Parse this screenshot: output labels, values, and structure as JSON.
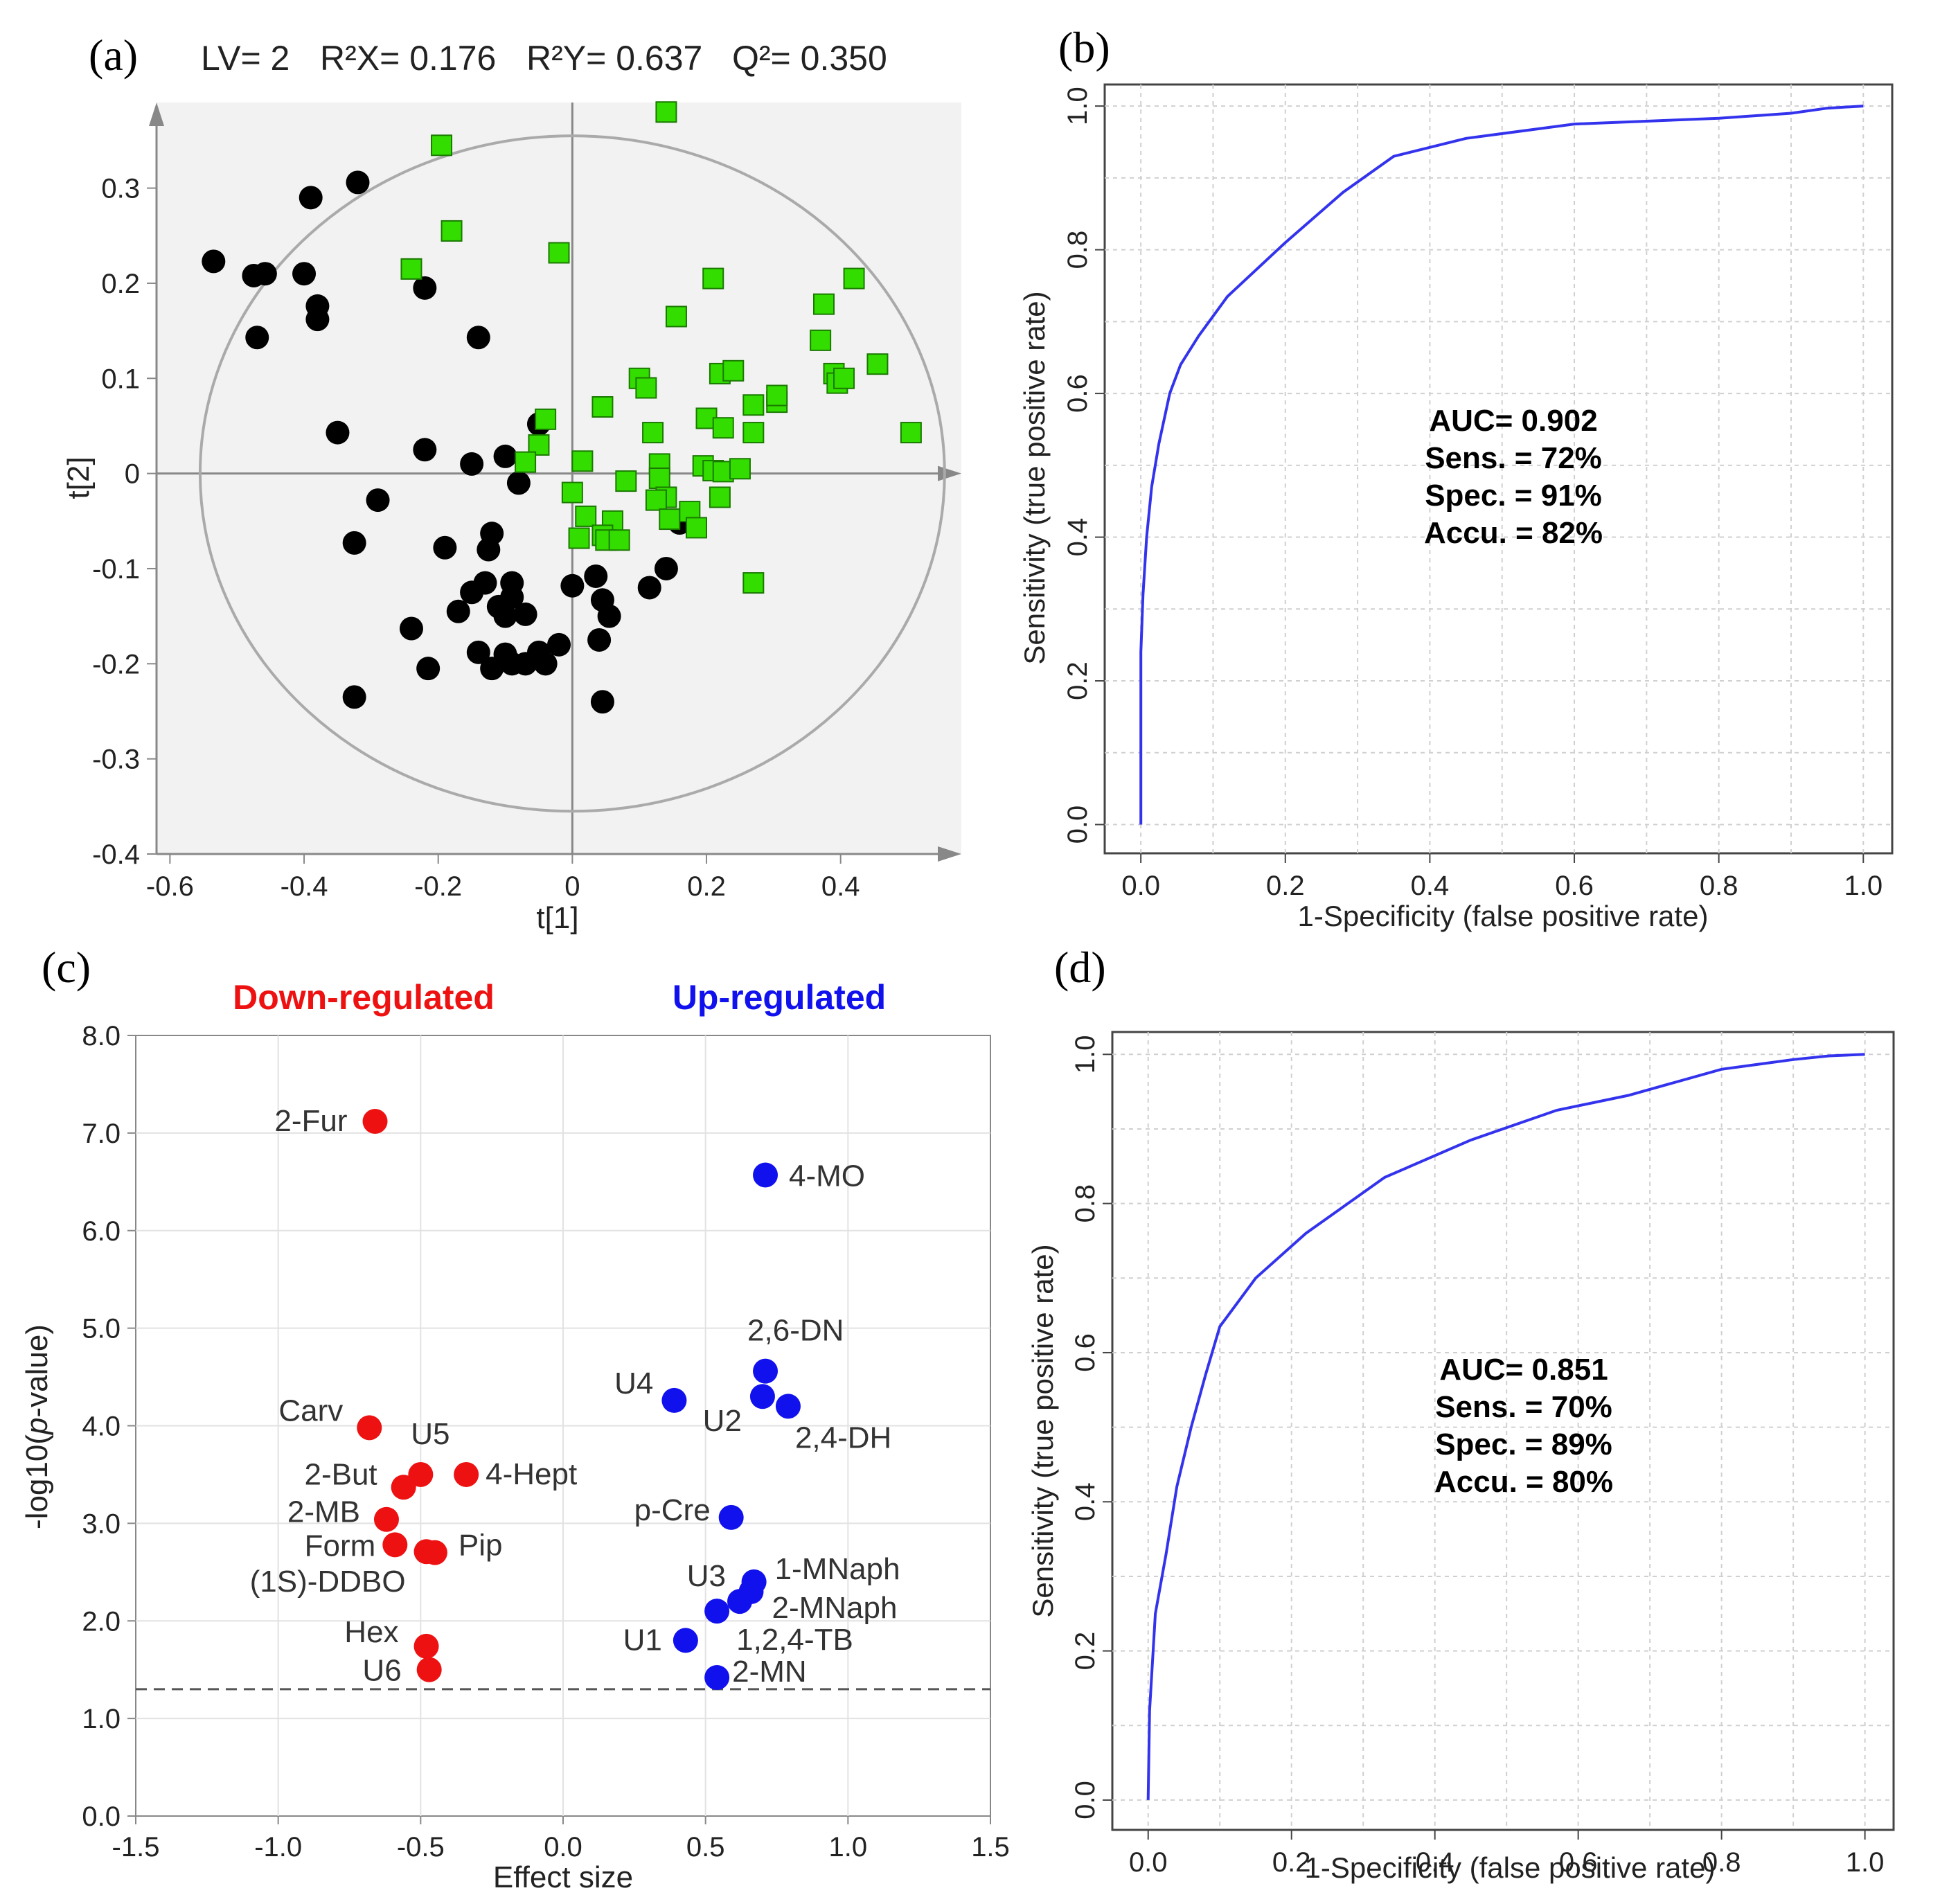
{
  "figure": {
    "panels": [
      {
        "id": "a",
        "label": "(a)"
      },
      {
        "id": "b",
        "label": "(b)"
      },
      {
        "id": "c",
        "label": "(c)"
      },
      {
        "id": "d",
        "label": "(d)"
      }
    ]
  },
  "chart_data": [
    {
      "panel": "a",
      "type": "scatter",
      "title": "LV= 2  R²X= 0.176  R²Y= 0.637  Q²= 0.350",
      "stats": {
        "lv": "LV= 2",
        "r2x": "R²X= 0.176",
        "r2y": "R²Y= 0.637",
        "q2": "Q²= 0.350"
      },
      "xlabel": "t[1]",
      "ylabel": "t[2]",
      "xlim": [
        -0.62,
        0.58
      ],
      "ylim": [
        -0.4,
        0.39
      ],
      "xticks": [
        "-0.6",
        "-0.4",
        "-0.2",
        "0",
        "0.2",
        "0.4"
      ],
      "yticks": [
        "-0.4",
        "-0.3",
        "-0.2",
        "-0.1",
        "0",
        "0.1",
        "0.2",
        "0.3"
      ],
      "ellipse": {
        "rx": 0.555,
        "ry": 0.355
      },
      "colors": {
        "group1": "#000000",
        "group2": "#33dd00",
        "panel_bg": "#f2f2f2",
        "axis": "#888888"
      },
      "series": [
        {
          "name": "group1",
          "marker": "circle",
          "points": [
            [
              -0.535,
              0.223
            ],
            [
              -0.475,
              0.208
            ],
            [
              -0.458,
              0.21
            ],
            [
              -0.47,
              0.143
            ],
            [
              -0.4,
              0.21
            ],
            [
              -0.39,
              0.29
            ],
            [
              -0.38,
              0.176
            ],
            [
              -0.38,
              0.162
            ],
            [
              -0.32,
              0.306
            ],
            [
              -0.35,
              0.043
            ],
            [
              -0.29,
              -0.028
            ],
            [
              -0.325,
              -0.073
            ],
            [
              -0.22,
              0.195
            ],
            [
              -0.14,
              0.143
            ],
            [
              -0.22,
              0.025
            ],
            [
              -0.15,
              0.01
            ],
            [
              -0.1,
              0.018
            ],
            [
              -0.05,
              0.052
            ],
            [
              -0.08,
              -0.01
            ],
            [
              -0.19,
              -0.078
            ],
            [
              -0.12,
              -0.063
            ],
            [
              -0.125,
              -0.08
            ],
            [
              -0.24,
              -0.163
            ],
            [
              -0.17,
              -0.145
            ],
            [
              -0.15,
              -0.125
            ],
            [
              -0.13,
              -0.115
            ],
            [
              -0.11,
              -0.14
            ],
            [
              -0.09,
              -0.115
            ],
            [
              -0.09,
              -0.13
            ],
            [
              -0.1,
              -0.15
            ],
            [
              -0.07,
              -0.148
            ],
            [
              -0.14,
              -0.188
            ],
            [
              -0.12,
              -0.205
            ],
            [
              -0.1,
              -0.19
            ],
            [
              -0.09,
              -0.2
            ],
            [
              -0.07,
              -0.2
            ],
            [
              -0.05,
              -0.188
            ],
            [
              -0.04,
              -0.2
            ],
            [
              -0.02,
              -0.18
            ],
            [
              -0.215,
              -0.205
            ],
            [
              -0.325,
              -0.235
            ],
            [
              0.0,
              -0.118
            ],
            [
              0.035,
              -0.108
            ],
            [
              0.045,
              -0.133
            ],
            [
              0.055,
              -0.15
            ],
            [
              0.04,
              -0.175
            ],
            [
              0.045,
              -0.24
            ],
            [
              0.115,
              -0.12
            ],
            [
              0.14,
              -0.1
            ],
            [
              0.16,
              -0.052
            ]
          ]
        },
        {
          "name": "group2",
          "marker": "square",
          "points": [
            [
              0.14,
              0.38
            ],
            [
              -0.195,
              0.345
            ],
            [
              -0.18,
              0.255
            ],
            [
              -0.24,
              0.215
            ],
            [
              -0.02,
              0.232
            ],
            [
              0.21,
              0.205
            ],
            [
              0.155,
              0.165
            ],
            [
              0.375,
              0.178
            ],
            [
              0.42,
              0.205
            ],
            [
              0.37,
              0.14
            ],
            [
              0.39,
              0.105
            ],
            [
              0.395,
              0.095
            ],
            [
              0.405,
              0.1
            ],
            [
              0.455,
              0.115
            ],
            [
              0.505,
              0.043
            ],
            [
              0.1,
              0.1
            ],
            [
              0.11,
              0.09
            ],
            [
              0.045,
              0.07
            ],
            [
              -0.04,
              0.057
            ],
            [
              -0.05,
              0.03
            ],
            [
              -0.07,
              0.012
            ],
            [
              0.015,
              0.013
            ],
            [
              0.12,
              0.043
            ],
            [
              0.2,
              0.058
            ],
            [
              0.225,
              0.048
            ],
            [
              0.22,
              0.105
            ],
            [
              0.24,
              0.108
            ],
            [
              0.27,
              0.072
            ],
            [
              0.305,
              0.075
            ],
            [
              0.305,
              0.082
            ],
            [
              0.27,
              0.043
            ],
            [
              0.13,
              0.01
            ],
            [
              0.13,
              -0.005
            ],
            [
              0.195,
              0.008
            ],
            [
              0.21,
              0.003
            ],
            [
              0.225,
              0.002
            ],
            [
              0.25,
              0.005
            ],
            [
              0.08,
              -0.008
            ],
            [
              0.14,
              -0.025
            ],
            [
              0.125,
              -0.028
            ],
            [
              0.145,
              -0.048
            ],
            [
              0.22,
              -0.025
            ],
            [
              0.175,
              -0.04
            ],
            [
              0.185,
              -0.057
            ],
            [
              0.02,
              -0.045
            ],
            [
              0.06,
              -0.05
            ],
            [
              0.045,
              -0.065
            ],
            [
              0.05,
              -0.07
            ],
            [
              0.07,
              -0.07
            ],
            [
              0.01,
              -0.068
            ],
            [
              0.0,
              -0.02
            ],
            [
              0.27,
              -0.115
            ]
          ]
        }
      ]
    },
    {
      "panel": "b",
      "type": "line",
      "xlabel": "1-Specificity (false positive rate)",
      "ylabel": "Sensitivity (true positive rate)",
      "xlim": [
        -0.05,
        1.04
      ],
      "ylim": [
        -0.04,
        1.03
      ],
      "xticks": [
        "0.0",
        "0.2",
        "0.4",
        "0.6",
        "0.8",
        "1.0"
      ],
      "yticks": [
        "0.0",
        "0.2",
        "0.4",
        "0.6",
        "0.8",
        "1.0"
      ],
      "annotation": [
        "AUC= 0.902",
        "Sens. = 72%",
        "Spec. = 91%",
        "Accu. = 82%"
      ],
      "colors": {
        "line": "#3333ee",
        "grid": "#d0d0d0"
      },
      "series": [
        {
          "name": "ROC",
          "x": [
            0,
            0,
            0.003,
            0.008,
            0.015,
            0.025,
            0.04,
            0.055,
            0.08,
            0.12,
            0.2,
            0.28,
            0.35,
            0.45,
            0.6,
            0.8,
            0.9,
            0.95,
            1.0
          ],
          "y": [
            0,
            0.24,
            0.32,
            0.4,
            0.47,
            0.53,
            0.6,
            0.64,
            0.68,
            0.735,
            0.81,
            0.88,
            0.93,
            0.955,
            0.975,
            0.983,
            0.99,
            0.997,
            1.0
          ]
        }
      ]
    },
    {
      "panel": "c",
      "type": "scatter",
      "xlabel": "Effect size",
      "ylabel": "-log10(p-value)",
      "xlim": [
        -1.5,
        1.5
      ],
      "ylim": [
        0,
        8
      ],
      "xticks": [
        "-1.5",
        "-1.0",
        "-0.5",
        "0.0",
        "0.5",
        "1.0",
        "1.5"
      ],
      "yticks": [
        "0.0",
        "1.0",
        "2.0",
        "3.0",
        "4.0",
        "5.0",
        "6.0",
        "7.0",
        "8.0"
      ],
      "legend_left": "Down-regulated",
      "legend_right": "Up-regulated",
      "threshold": 1.3,
      "colors": {
        "down": "#ee1111",
        "up": "#1111ee",
        "threshold": "#555555"
      },
      "series": [
        {
          "name": "Down-regulated",
          "points": [
            {
              "x": -0.66,
              "y": 7.12,
              "label": "2-Fur"
            },
            {
              "x": -0.68,
              "y": 3.98,
              "label": "Carv"
            },
            {
              "x": -0.5,
              "y": 3.5,
              "label": "U5"
            },
            {
              "x": -0.34,
              "y": 3.5,
              "label": "4-Hept"
            },
            {
              "x": -0.56,
              "y": 3.37,
              "label": "2-But"
            },
            {
              "x": -0.62,
              "y": 3.04,
              "label": "2-MB"
            },
            {
              "x": -0.59,
              "y": 2.78,
              "label": "Form"
            },
            {
              "x": -0.48,
              "y": 2.71,
              "label": "(1S)-DDBO"
            },
            {
              "x": -0.45,
              "y": 2.7,
              "label": "Pip"
            },
            {
              "x": -0.48,
              "y": 1.74,
              "label": "Hex"
            },
            {
              "x": -0.47,
              "y": 1.5,
              "label": "U6"
            }
          ]
        },
        {
          "name": "Up-regulated",
          "points": [
            {
              "x": 0.71,
              "y": 6.57,
              "label": "4-MO"
            },
            {
              "x": 0.71,
              "y": 4.56,
              "label": "2,6-DN"
            },
            {
              "x": 0.39,
              "y": 4.26,
              "label": "U4"
            },
            {
              "x": 0.7,
              "y": 4.3,
              "label": "U2"
            },
            {
              "x": 0.79,
              "y": 4.2,
              "label": "2,4-DH"
            },
            {
              "x": 0.59,
              "y": 3.06,
              "label": "p-Cre"
            },
            {
              "x": 0.67,
              "y": 2.4,
              "label": "1-MNaph"
            },
            {
              "x": 0.66,
              "y": 2.3,
              "label": "2-MNaph"
            },
            {
              "x": 0.62,
              "y": 2.2,
              "label": "U3"
            },
            {
              "x": 0.54,
              "y": 2.1,
              "label": "1,2,4-TB"
            },
            {
              "x": 0.43,
              "y": 1.8,
              "label": "U1"
            },
            {
              "x": 0.54,
              "y": 1.42,
              "label": "2-MN"
            }
          ]
        }
      ]
    },
    {
      "panel": "d",
      "type": "line",
      "xlabel": "1-Specificity (false positive rate)",
      "ylabel": "Sensitivity (true positive rate)",
      "xlim": [
        -0.05,
        1.04
      ],
      "ylim": [
        -0.04,
        1.03
      ],
      "xticks": [
        "0.0",
        "0.2",
        "0.4",
        "0.6",
        "0.8",
        "1.0"
      ],
      "yticks": [
        "0.0",
        "0.2",
        "0.4",
        "0.6",
        "0.8",
        "1.0"
      ],
      "annotation": [
        "AUC= 0.851",
        "Sens. = 70%",
        "Spec. = 89%",
        "Accu. = 80%"
      ],
      "colors": {
        "line": "#3333ee",
        "grid": "#d0d0d0"
      },
      "series": [
        {
          "name": "ROC",
          "x": [
            0,
            0.002,
            0.01,
            0.025,
            0.04,
            0.06,
            0.08,
            0.1,
            0.15,
            0.22,
            0.33,
            0.45,
            0.57,
            0.67,
            0.8,
            0.9,
            0.95,
            1.0
          ],
          "y": [
            0,
            0.12,
            0.25,
            0.33,
            0.42,
            0.5,
            0.57,
            0.635,
            0.7,
            0.76,
            0.835,
            0.885,
            0.925,
            0.945,
            0.98,
            0.993,
            0.998,
            1.0
          ]
        }
      ]
    }
  ]
}
